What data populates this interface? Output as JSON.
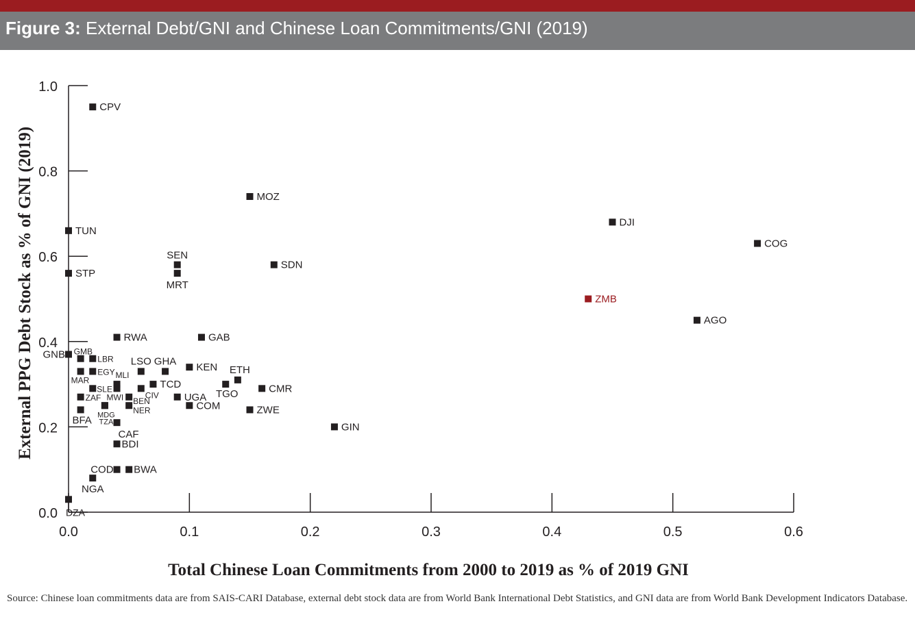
{
  "header": {
    "title_prefix": "Figure 3:",
    "title": " External Debt/GNI and Chinese Loan Commitments/GNI (2019)"
  },
  "colors": {
    "top_bar": "#9b1c20",
    "title_bar": "#7b7c7e",
    "point": "#231f20",
    "highlight": "#9b1c20"
  },
  "footer": {
    "source": "Source: Chinese loan commitments data are from SAIS-CARI Database, external debt stock data are from World Bank International Debt Statistics, and GNI data are from World Bank Development Indicators Database."
  },
  "chart_data": {
    "type": "scatter",
    "xlabel": "Total Chinese Loan Commitments from 2000 to 2019 as % of 2019 GNI",
    "ylabel": "External PPG Debt Stock as % of GNI (2019)",
    "xlim": [
      0,
      0.6
    ],
    "ylim": [
      0,
      1.0
    ],
    "x_ticks": [
      "0.0",
      "0.1",
      "0.2",
      "0.3",
      "0.4",
      "0.5",
      "0.6"
    ],
    "y_ticks": [
      "0.0",
      "0.2",
      "0.4",
      "0.6",
      "0.8",
      "1.0"
    ],
    "grid": false,
    "highlight": "ZMB",
    "points": [
      {
        "label": "CPV",
        "x": 0.02,
        "y": 0.95
      },
      {
        "label": "MOZ",
        "x": 0.15,
        "y": 0.74
      },
      {
        "label": "DJI",
        "x": 0.45,
        "y": 0.68
      },
      {
        "label": "COG",
        "x": 0.57,
        "y": 0.63
      },
      {
        "label": "TUN",
        "x": 0.0,
        "y": 0.66
      },
      {
        "label": "SEN",
        "x": 0.09,
        "y": 0.58
      },
      {
        "label": "MRT",
        "x": 0.09,
        "y": 0.56
      },
      {
        "label": "SDN",
        "x": 0.17,
        "y": 0.58
      },
      {
        "label": "STP",
        "x": 0.0,
        "y": 0.56
      },
      {
        "label": "ZMB",
        "x": 0.43,
        "y": 0.5
      },
      {
        "label": "AGO",
        "x": 0.52,
        "y": 0.45
      },
      {
        "label": "RWA",
        "x": 0.04,
        "y": 0.41
      },
      {
        "label": "GAB",
        "x": 0.11,
        "y": 0.41
      },
      {
        "label": "GNB",
        "x": 0.0,
        "y": 0.37
      },
      {
        "label": "GMB",
        "x": 0.01,
        "y": 0.36
      },
      {
        "label": "LBR",
        "x": 0.02,
        "y": 0.36
      },
      {
        "label": "MAR",
        "x": 0.01,
        "y": 0.33
      },
      {
        "label": "EGY",
        "x": 0.02,
        "y": 0.33
      },
      {
        "label": "LSO",
        "x": 0.06,
        "y": 0.33
      },
      {
        "label": "GHA",
        "x": 0.08,
        "y": 0.33
      },
      {
        "label": "KEN",
        "x": 0.1,
        "y": 0.34
      },
      {
        "label": "ETH",
        "x": 0.14,
        "y": 0.31
      },
      {
        "label": "TGO",
        "x": 0.13,
        "y": 0.3
      },
      {
        "label": "CMR",
        "x": 0.16,
        "y": 0.29
      },
      {
        "label": "MLI",
        "x": 0.04,
        "y": 0.3
      },
      {
        "label": "TCD",
        "x": 0.07,
        "y": 0.3
      },
      {
        "label": "SLE",
        "x": 0.02,
        "y": 0.29
      },
      {
        "label": "CIV",
        "x": 0.06,
        "y": 0.29
      },
      {
        "label": "ZAF",
        "x": 0.01,
        "y": 0.27
      },
      {
        "label": "MWI",
        "x": 0.04,
        "y": 0.29
      },
      {
        "label": "BEN",
        "x": 0.05,
        "y": 0.27
      },
      {
        "label": "UGA",
        "x": 0.09,
        "y": 0.27
      },
      {
        "label": "COM",
        "x": 0.1,
        "y": 0.25
      },
      {
        "label": "NER",
        "x": 0.05,
        "y": 0.25
      },
      {
        "label": "MDG",
        "x": 0.03,
        "y": 0.25
      },
      {
        "label": "TZA",
        "x": 0.03,
        "y": 0.25
      },
      {
        "label": "BFA",
        "x": 0.01,
        "y": 0.24
      },
      {
        "label": "ZWE",
        "x": 0.15,
        "y": 0.24
      },
      {
        "label": "CAF",
        "x": 0.04,
        "y": 0.21
      },
      {
        "label": "GIN",
        "x": 0.22,
        "y": 0.2
      },
      {
        "label": "BDI",
        "x": 0.04,
        "y": 0.16
      },
      {
        "label": "COD",
        "x": 0.04,
        "y": 0.1
      },
      {
        "label": "BWA",
        "x": 0.05,
        "y": 0.1
      },
      {
        "label": "NGA",
        "x": 0.02,
        "y": 0.08
      },
      {
        "label": "DZA",
        "x": 0.0,
        "y": 0.03
      }
    ]
  }
}
